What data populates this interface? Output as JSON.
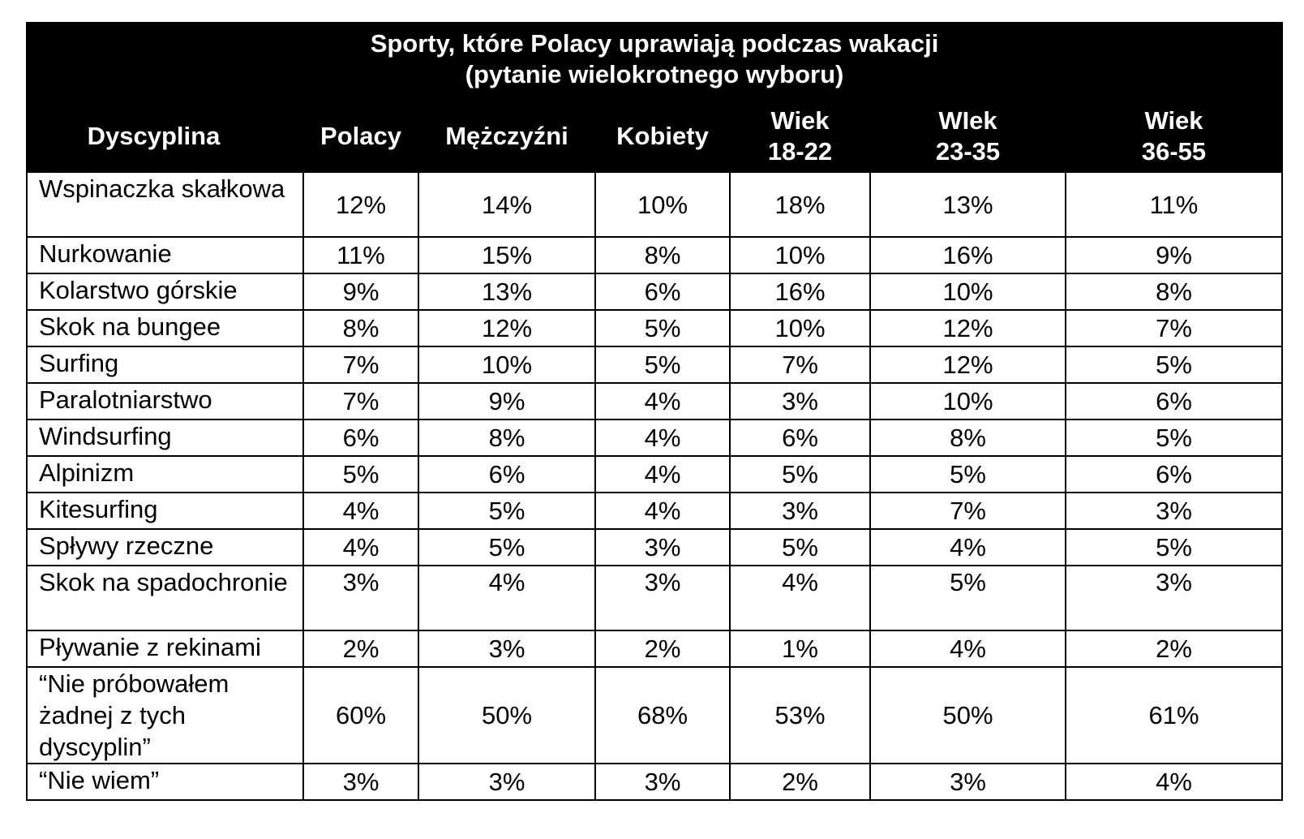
{
  "chart_data": {
    "type": "table",
    "title": [
      "Sporty, które Polacy uprawiają podczas wakacji",
      "(pytanie wielokrotnego wyboru)"
    ],
    "columns": [
      "Dyscyplina",
      "Polacy",
      "Mężczyźni",
      "Kobiety",
      "Wiek\n18-22",
      "WIek\n23-35",
      "Wiek\n36-55"
    ],
    "rows": [
      {
        "name": "Wspinaczka skałkowa",
        "values": [
          "12%",
          "14%",
          "10%",
          "18%",
          "13%",
          "11%"
        ]
      },
      {
        "name": "Nurkowanie",
        "values": [
          "11%",
          "15%",
          "8%",
          "10%",
          "16%",
          "9%"
        ]
      },
      {
        "name": "Kolarstwo górskie",
        "values": [
          "9%",
          "13%",
          "6%",
          "16%",
          "10%",
          "8%"
        ]
      },
      {
        "name": "Skok na bungee",
        "values": [
          "8%",
          "12%",
          "5%",
          "10%",
          "12%",
          "7%"
        ]
      },
      {
        "name": "Surfing",
        "values": [
          "7%",
          "10%",
          "5%",
          "7%",
          "12%",
          "5%"
        ]
      },
      {
        "name": "Paralotniarstwo",
        "values": [
          "7%",
          "9%",
          "4%",
          "3%",
          "10%",
          "6%"
        ]
      },
      {
        "name": "Windsurfing",
        "values": [
          "6%",
          "8%",
          "4%",
          "6%",
          "8%",
          "5%"
        ]
      },
      {
        "name": "Alpinizm",
        "values": [
          "5%",
          "6%",
          "4%",
          "5%",
          "5%",
          "6%"
        ]
      },
      {
        "name": "Kitesurfing",
        "values": [
          "4%",
          "5%",
          "4%",
          "3%",
          "7%",
          "3%"
        ]
      },
      {
        "name": "Spływy rzeczne",
        "values": [
          "4%",
          "5%",
          "3%",
          "5%",
          "4%",
          "5%"
        ]
      },
      {
        "name": "Skok na spadochronie",
        "values": [
          "3%",
          "4%",
          "3%",
          "4%",
          "5%",
          "3%"
        ]
      },
      {
        "name": "Pływanie z rekinami",
        "values": [
          "2%",
          "3%",
          "2%",
          "1%",
          "4%",
          "2%"
        ]
      },
      {
        "name": "“Nie próbowałem żadnej z tych dyscyplin”",
        "values": [
          "60%",
          "50%",
          "68%",
          "53%",
          "50%",
          "61%"
        ]
      },
      {
        "name": "“Nie wiem”",
        "values": [
          "3%",
          "3%",
          "3%",
          "2%",
          "3%",
          "4%"
        ]
      }
    ]
  }
}
